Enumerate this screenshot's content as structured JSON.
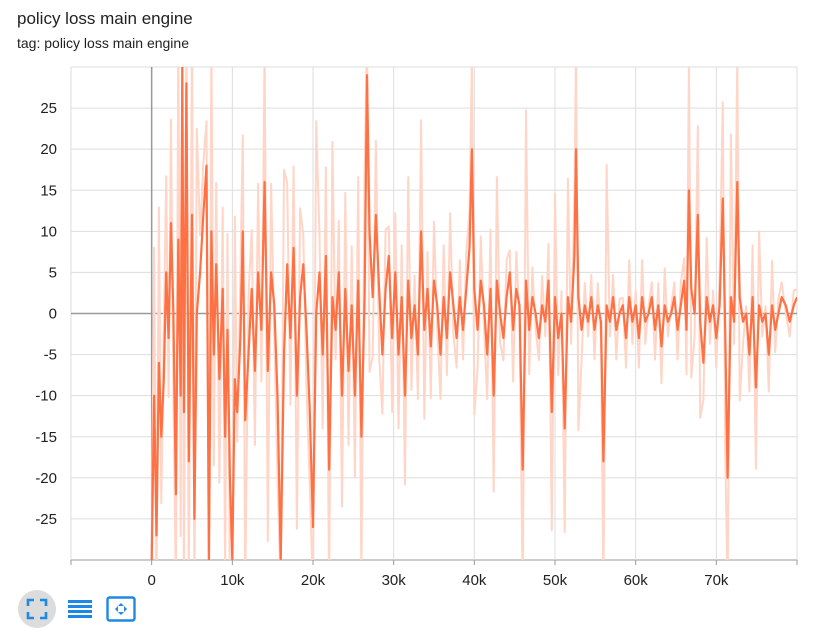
{
  "card": {
    "title": "policy loss main engine",
    "tag": "tag: policy loss main engine"
  },
  "colors": {
    "line": "#ff7043",
    "raw_line": "#ffd5c7",
    "grid": "#dddddd",
    "axis": "#999999",
    "icon": "#1e88e5"
  },
  "toolbar": {
    "buttons": [
      {
        "name": "fullscreen-toggle-button",
        "icon": "expand-icon",
        "active": true
      },
      {
        "name": "toggle-log-scale-button",
        "icon": "lines-icon",
        "active": false
      },
      {
        "name": "fit-domain-button",
        "icon": "fit-domain-icon",
        "active": false
      }
    ]
  },
  "chart_data": {
    "type": "line",
    "title": "policy loss main engine",
    "xlabel": "",
    "ylabel": "",
    "xlim": [
      -10000,
      80000
    ],
    "ylim": [
      -30,
      30
    ],
    "x_ticks": [
      0,
      10000,
      20000,
      30000,
      40000,
      50000,
      60000,
      70000
    ],
    "x_tick_labels": [
      "0",
      "10k",
      "20k",
      "30k",
      "40k",
      "50k",
      "60k",
      "70k"
    ],
    "y_ticks": [
      -25,
      -20,
      -15,
      -10,
      -5,
      0,
      5,
      10,
      15,
      20,
      25
    ],
    "y_tick_labels": [
      "-25",
      "-20",
      "-15",
      "-10",
      "-5",
      "0",
      "5",
      "10",
      "15",
      "20",
      "25"
    ],
    "grid": true,
    "series": [
      {
        "style": "smoothed",
        "points": [
          [
            0,
            -30
          ],
          [
            300,
            -10
          ],
          [
            600,
            -27
          ],
          [
            900,
            -6
          ],
          [
            1200,
            -15
          ],
          [
            1500,
            -8
          ],
          [
            1800,
            5
          ],
          [
            2100,
            -3
          ],
          [
            2400,
            11
          ],
          [
            2700,
            0
          ],
          [
            3000,
            -22
          ],
          [
            3300,
            9
          ],
          [
            3600,
            -10
          ],
          [
            3800,
            30
          ],
          [
            4000,
            -12
          ],
          [
            4300,
            28
          ],
          [
            4600,
            -18
          ],
          [
            5000,
            12
          ],
          [
            5300,
            -25
          ],
          [
            5600,
            0
          ],
          [
            6000,
            5
          ],
          [
            6400,
            12
          ],
          [
            6800,
            18
          ],
          [
            7100,
            -30
          ],
          [
            7400,
            10
          ],
          [
            7700,
            -5
          ],
          [
            8000,
            6
          ],
          [
            8400,
            -8
          ],
          [
            8800,
            3
          ],
          [
            9100,
            -15
          ],
          [
            9400,
            -2
          ],
          [
            9700,
            -20
          ],
          [
            10000,
            -30
          ],
          [
            10300,
            -8
          ],
          [
            10600,
            -12
          ],
          [
            11000,
            -3
          ],
          [
            11300,
            10
          ],
          [
            11600,
            -13
          ],
          [
            12000,
            -5
          ],
          [
            12400,
            3
          ],
          [
            12800,
            -7
          ],
          [
            13200,
            5
          ],
          [
            13600,
            -2
          ],
          [
            14000,
            16
          ],
          [
            14400,
            -7
          ],
          [
            14800,
            5
          ],
          [
            15200,
            1
          ],
          [
            15600,
            -10
          ],
          [
            16000,
            -30
          ],
          [
            16400,
            -5
          ],
          [
            16800,
            6
          ],
          [
            17200,
            -3
          ],
          [
            17600,
            8
          ],
          [
            18000,
            -10
          ],
          [
            18400,
            2
          ],
          [
            18800,
            6
          ],
          [
            19200,
            -2
          ],
          [
            19600,
            -12
          ],
          [
            20000,
            -26
          ],
          [
            20400,
            0
          ],
          [
            20800,
            5
          ],
          [
            21200,
            -5
          ],
          [
            21600,
            7
          ],
          [
            22000,
            -19
          ],
          [
            22400,
            2
          ],
          [
            22800,
            -2
          ],
          [
            23200,
            5
          ],
          [
            23600,
            -10
          ],
          [
            24000,
            3
          ],
          [
            24400,
            -7
          ],
          [
            24800,
            1
          ],
          [
            25200,
            -10
          ],
          [
            25600,
            4
          ],
          [
            26000,
            -15
          ],
          [
            26400,
            2
          ],
          [
            26700,
            29
          ],
          [
            27000,
            10
          ],
          [
            27400,
            2
          ],
          [
            27800,
            12
          ],
          [
            28200,
            3
          ],
          [
            28600,
            -5
          ],
          [
            29000,
            3
          ],
          [
            29400,
            7
          ],
          [
            29800,
            -3
          ],
          [
            30200,
            5
          ],
          [
            30600,
            -5
          ],
          [
            31000,
            2
          ],
          [
            31400,
            -10
          ],
          [
            31800,
            4
          ],
          [
            32200,
            -3
          ],
          [
            32600,
            1
          ],
          [
            33000,
            -5
          ],
          [
            33400,
            10
          ],
          [
            33800,
            -2
          ],
          [
            34200,
            3
          ],
          [
            34600,
            -4
          ],
          [
            35000,
            4
          ],
          [
            35400,
            1
          ],
          [
            35800,
            -5
          ],
          [
            36200,
            2
          ],
          [
            36600,
            -3
          ],
          [
            37000,
            5
          ],
          [
            37400,
            1
          ],
          [
            37800,
            -3
          ],
          [
            38200,
            2
          ],
          [
            38600,
            -2
          ],
          [
            39000,
            3
          ],
          [
            39400,
            8
          ],
          [
            39700,
            20
          ],
          [
            40000,
            3
          ],
          [
            40400,
            -2
          ],
          [
            40800,
            4
          ],
          [
            41200,
            1
          ],
          [
            41600,
            -5
          ],
          [
            42000,
            3
          ],
          [
            42400,
            -10
          ],
          [
            42800,
            4
          ],
          [
            43200,
            0
          ],
          [
            43600,
            -3
          ],
          [
            44000,
            2
          ],
          [
            44400,
            5
          ],
          [
            44800,
            -2
          ],
          [
            45200,
            3
          ],
          [
            45600,
            1
          ],
          [
            46000,
            -19
          ],
          [
            46400,
            4
          ],
          [
            46800,
            -2
          ],
          [
            47200,
            2
          ],
          [
            47600,
            0
          ],
          [
            48000,
            -3
          ],
          [
            48400,
            1
          ],
          [
            48800,
            -1
          ],
          [
            49200,
            4
          ],
          [
            49600,
            -12
          ],
          [
            50000,
            2
          ],
          [
            50400,
            -3
          ],
          [
            50800,
            0
          ],
          [
            51200,
            -14
          ],
          [
            51600,
            2
          ],
          [
            52000,
            -1
          ],
          [
            52400,
            7
          ],
          [
            52600,
            20
          ],
          [
            52900,
            2
          ],
          [
            53300,
            -2
          ],
          [
            53700,
            1
          ],
          [
            54100,
            -1
          ],
          [
            54500,
            2
          ],
          [
            54900,
            -2
          ],
          [
            55300,
            1
          ],
          [
            55700,
            -1
          ],
          [
            56000,
            -18
          ],
          [
            56400,
            1
          ],
          [
            56800,
            -1
          ],
          [
            57200,
            2
          ],
          [
            57600,
            -2
          ],
          [
            58000,
            0
          ],
          [
            58400,
            1
          ],
          [
            58800,
            -3
          ],
          [
            59200,
            2
          ],
          [
            59600,
            -1
          ],
          [
            60000,
            1
          ],
          [
            60400,
            -3
          ],
          [
            60800,
            2
          ],
          [
            61200,
            -1
          ],
          [
            61600,
            0
          ],
          [
            62000,
            2
          ],
          [
            62400,
            -2
          ],
          [
            62800,
            1
          ],
          [
            63200,
            -4
          ],
          [
            63600,
            1
          ],
          [
            64000,
            -1
          ],
          [
            64400,
            0
          ],
          [
            64800,
            2
          ],
          [
            65200,
            -2
          ],
          [
            65600,
            1
          ],
          [
            66000,
            4
          ],
          [
            66300,
            -2
          ],
          [
            66600,
            15
          ],
          [
            66900,
            3
          ],
          [
            67300,
            0
          ],
          [
            67700,
            12
          ],
          [
            68000,
            -1
          ],
          [
            68400,
            -6
          ],
          [
            68800,
            2
          ],
          [
            69200,
            -1
          ],
          [
            69600,
            1
          ],
          [
            70000,
            -3
          ],
          [
            70400,
            1
          ],
          [
            70800,
            14
          ],
          [
            71100,
            -2
          ],
          [
            71400,
            -20
          ],
          [
            71800,
            2
          ],
          [
            72200,
            -1
          ],
          [
            72600,
            16
          ],
          [
            72900,
            2
          ],
          [
            73300,
            -1
          ],
          [
            73700,
            0
          ],
          [
            74100,
            -5
          ],
          [
            74500,
            2
          ],
          [
            74900,
            -9
          ],
          [
            75300,
            1
          ],
          [
            75700,
            -1
          ],
          [
            76100,
            0
          ],
          [
            76500,
            -5
          ],
          [
            76900,
            1
          ],
          [
            77300,
            -2
          ],
          [
            77700,
            0
          ],
          [
            78100,
            2
          ],
          [
            78600,
            1
          ],
          [
            79100,
            -1
          ],
          [
            79600,
            1
          ],
          [
            80000,
            2
          ]
        ]
      }
    ]
  }
}
